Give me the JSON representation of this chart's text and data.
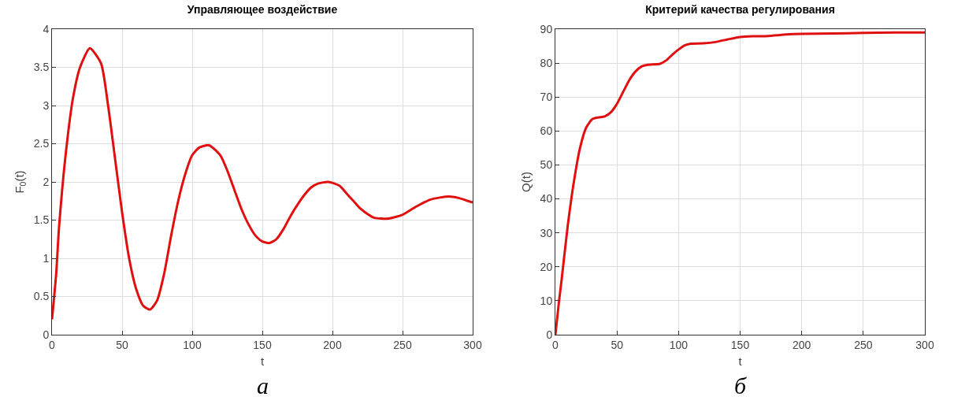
{
  "chart_data": [
    {
      "type": "line",
      "title": "Управляющее воздействие",
      "xlabel": "t",
      "ylabel": "F$_{0}$(t)",
      "annotations": [
        "а"
      ],
      "x": [
        0,
        3,
        5,
        10,
        15,
        20,
        27,
        35,
        40,
        45,
        50,
        55,
        60,
        65,
        70,
        75,
        80,
        85,
        90,
        95,
        100,
        105,
        112,
        120,
        125,
        130,
        135,
        140,
        145,
        150,
        155,
        160,
        165,
        170,
        175,
        180,
        185,
        190,
        197,
        205,
        210,
        215,
        220,
        225,
        230,
        240,
        250,
        260,
        270,
        283,
        290,
        300
      ],
      "series": [
        {
          "color": "#e01010",
          "values": [
            0.2,
            0.8,
            1.4,
            2.4,
            3.1,
            3.5,
            3.75,
            3.55,
            3.0,
            2.3,
            1.6,
            1.0,
            0.6,
            0.38,
            0.33,
            0.45,
            0.8,
            1.3,
            1.75,
            2.1,
            2.35,
            2.45,
            2.48,
            2.35,
            2.15,
            1.9,
            1.65,
            1.45,
            1.3,
            1.22,
            1.2,
            1.25,
            1.38,
            1.55,
            1.7,
            1.83,
            1.93,
            1.98,
            2.0,
            1.95,
            1.85,
            1.75,
            1.65,
            1.58,
            1.53,
            1.52,
            1.57,
            1.68,
            1.77,
            1.81,
            1.79,
            1.73
          ]
        }
      ],
      "xlim": [
        0,
        300
      ],
      "xticks": [
        0,
        50,
        100,
        150,
        200,
        250,
        300
      ],
      "ylim": [
        0,
        4
      ],
      "yticks": [
        0,
        0.5,
        1,
        1.5,
        2,
        2.5,
        3,
        3.5,
        4
      ],
      "grid": true,
      "line_style": "solid"
    },
    {
      "type": "line",
      "title": "Критерий качества регулирования",
      "xlabel": "t",
      "ylabel": "Q(t)",
      "annotations": [
        "б"
      ],
      "x": [
        0,
        3,
        5,
        10,
        15,
        20,
        25,
        30,
        35,
        40,
        45,
        50,
        55,
        60,
        65,
        70,
        75,
        85,
        90,
        95,
        100,
        105,
        110,
        120,
        130,
        140,
        150,
        160,
        170,
        180,
        190,
        200,
        225,
        250,
        275,
        300
      ],
      "series": [
        {
          "color": "#e01010",
          "values": [
            0,
            10,
            16,
            32,
            45,
            55,
            61,
            63.5,
            64,
            64.3,
            65.5,
            68,
            71.5,
            75,
            77.5,
            79,
            79.5,
            79.8,
            80.8,
            82.5,
            84,
            85.2,
            85.7,
            85.8,
            86.2,
            87,
            87.7,
            87.9,
            87.9,
            88.2,
            88.5,
            88.6,
            88.7,
            88.9,
            89,
            89
          ]
        }
      ],
      "xlim": [
        0,
        300
      ],
      "xticks": [
        0,
        50,
        100,
        150,
        200,
        250,
        300
      ],
      "ylim": [
        0,
        90
      ],
      "yticks": [
        0,
        10,
        20,
        30,
        40,
        50,
        60,
        70,
        80,
        90
      ],
      "grid": true,
      "line_style": "solid"
    }
  ]
}
